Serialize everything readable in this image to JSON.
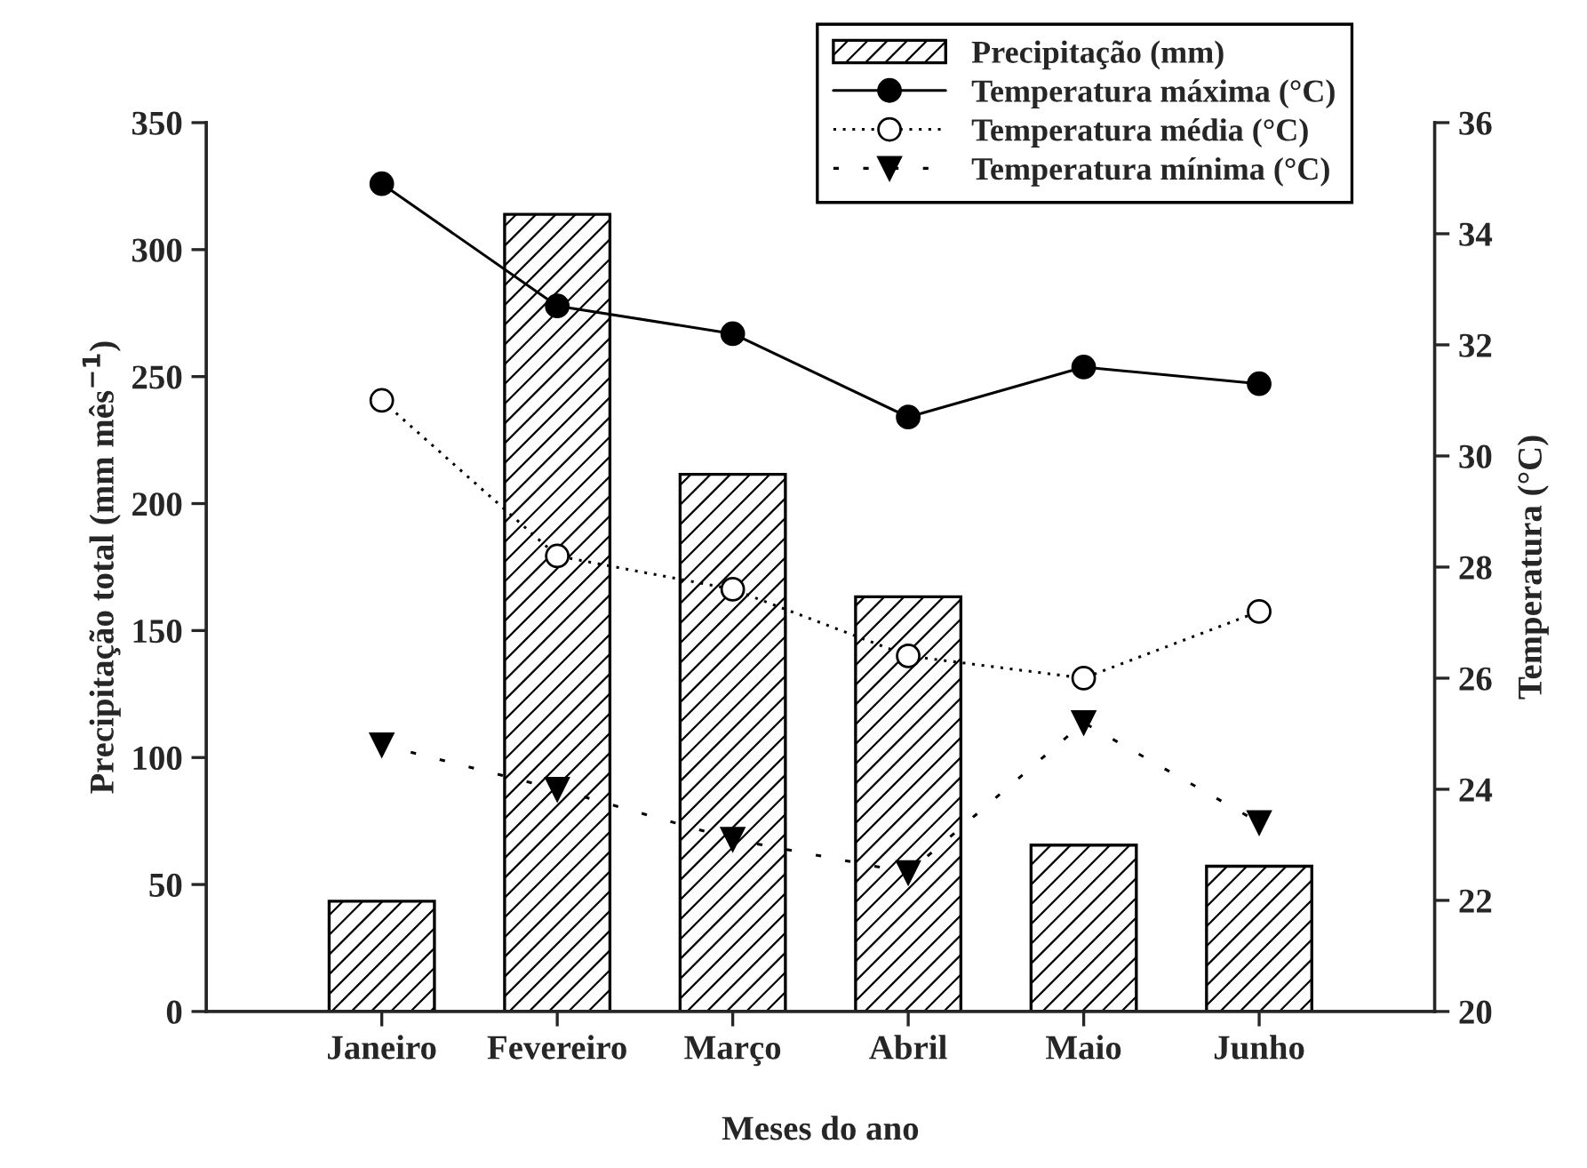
{
  "chart_data": {
    "type": "bar",
    "categories": [
      "Janeiro",
      "Fevereiro",
      "Março",
      "Abril",
      "Maio",
      "Junho"
    ],
    "xlabel": "Meses do ano",
    "ylabel": "Precipitação total (mm mês$^{−1}$)",
    "y2label": "Temperatura (°C)",
    "ylim": [
      0,
      350
    ],
    "yticks": [
      0,
      50,
      100,
      150,
      200,
      250,
      300,
      350
    ],
    "y2lim": [
      20,
      36
    ],
    "y2ticks": [
      20,
      22,
      24,
      26,
      28,
      30,
      32,
      34,
      36
    ],
    "legend": "top right",
    "grid": false,
    "series": [
      {
        "name": "Precipitação (mm)",
        "color": "#000000",
        "values": [
          43.4,
          313.9,
          211.5,
          163.3,
          65.5,
          57.2
        ]
      },
      {
        "name": "Temperatura máxima (°C)",
        "type": "line",
        "axis": "y2",
        "color": "#000000",
        "marker": "circle",
        "line_style": "solid",
        "values": [
          34.9,
          32.7,
          32.2,
          30.7,
          31.6,
          31.3
        ]
      },
      {
        "name": "Temperatura média (°C)",
        "type": "line",
        "axis": "y2",
        "color": "#000000",
        "marker": "circle",
        "line_style": "dotted",
        "values": [
          31.0,
          28.2,
          27.6,
          26.4,
          26.0,
          27.2
        ]
      },
      {
        "name": "Temperatura mínima (°C)",
        "type": "line",
        "axis": "y2",
        "color": "#000000",
        "marker": "triangle",
        "line_style": "dashed",
        "values": [
          24.8,
          24.0,
          23.1,
          22.5,
          25.2,
          23.4
        ]
      }
    ]
  }
}
